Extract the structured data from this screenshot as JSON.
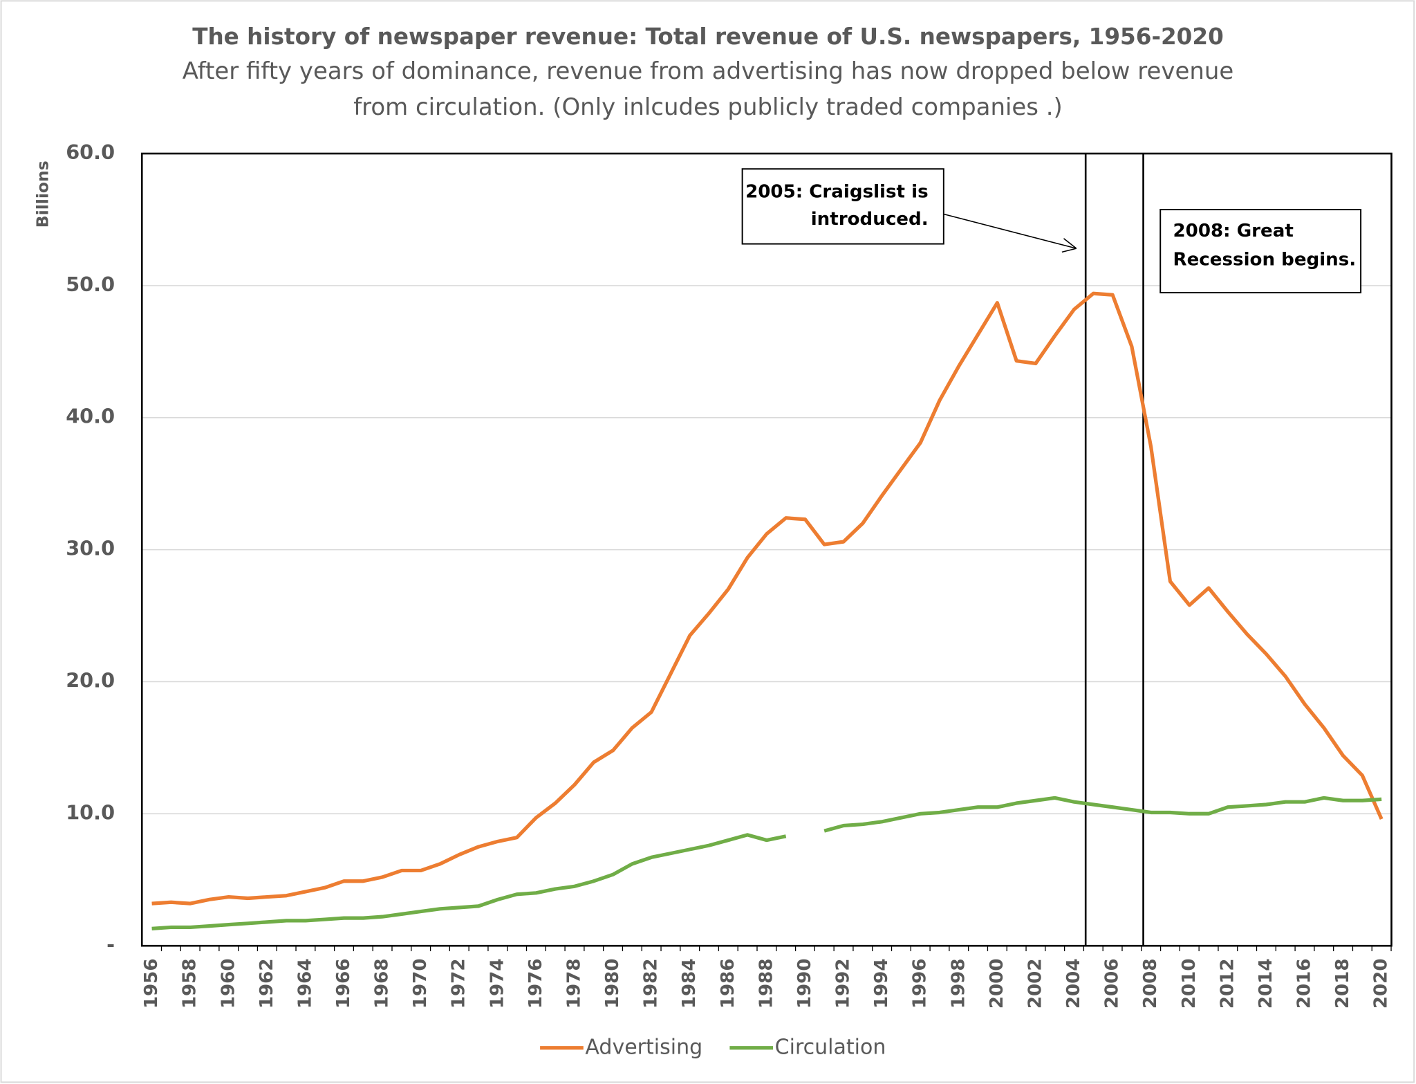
{
  "chart_data": {
    "type": "line",
    "title": "The history of newspaper revenue: Total revenue of U.S. newspapers, 1956-2020",
    "subtitle": [
      "After fifty years of dominance, revenue from advertising has now dropped below revenue",
      "from circulation. (Only inlcudes publicly traded companies .)"
    ],
    "y_label": "Billions",
    "categories": [
      "1956",
      null,
      "1958",
      null,
      "1960",
      null,
      "1962",
      null,
      "1964",
      null,
      "1966",
      null,
      "1968",
      null,
      "1970",
      null,
      "1972",
      null,
      "1974",
      null,
      "1976",
      null,
      "1978",
      null,
      "1980",
      null,
      "1982",
      null,
      "1984",
      null,
      "1986",
      null,
      "1988",
      null,
      "1990",
      null,
      "1992",
      null,
      "1994",
      null,
      "1996",
      null,
      "1998",
      null,
      "2000",
      null,
      "2002",
      null,
      "2004",
      null,
      "2006",
      null,
      "2008",
      null,
      "2010",
      null,
      "2012",
      null,
      "2014",
      null,
      "2016",
      null,
      "2018",
      null,
      "2020"
    ],
    "series": [
      {
        "name": "Advertising",
        "color": "#ed7d31",
        "values": [
          3.2,
          3.3,
          3.2,
          3.5,
          3.7,
          3.6,
          3.7,
          3.8,
          4.1,
          4.4,
          4.9,
          4.9,
          5.2,
          5.7,
          5.7,
          6.2,
          6.9,
          7.5,
          7.9,
          8.2,
          9.7,
          10.8,
          12.2,
          13.9,
          14.8,
          16.5,
          17.7,
          20.6,
          23.5,
          25.2,
          27.0,
          29.4,
          31.2,
          32.4,
          32.3,
          30.4,
          30.6,
          32.0,
          34.1,
          36.1,
          38.1,
          41.3,
          43.9,
          46.3,
          48.7,
          44.3,
          44.1,
          46.2,
          48.2,
          49.4,
          49.3,
          45.4,
          37.8,
          27.6,
          25.8,
          27.1,
          25.3,
          23.6,
          22.1,
          20.4,
          18.3,
          16.5,
          14.4,
          12.9,
          9.6
        ]
      },
      {
        "name": "Circulation",
        "color": "#70ad47",
        "values": [
          1.3,
          1.4,
          1.4,
          1.5,
          1.6,
          1.7,
          1.8,
          1.9,
          1.9,
          2.0,
          2.1,
          2.1,
          2.2,
          2.4,
          2.6,
          2.8,
          2.9,
          3.0,
          3.5,
          3.9,
          4.0,
          4.3,
          4.5,
          4.9,
          5.4,
          6.2,
          6.7,
          7.0,
          7.3,
          7.6,
          8.0,
          8.4,
          8.0,
          8.3,
          null,
          8.7,
          9.1,
          9.2,
          9.4,
          9.7,
          10.0,
          10.1,
          10.3,
          10.5,
          10.5,
          10.8,
          11.0,
          11.2,
          10.9,
          10.7,
          10.5,
          10.3,
          10.1,
          10.1,
          10.0,
          10.0,
          10.5,
          10.6,
          10.7,
          10.9,
          10.9,
          11.2,
          11.0,
          11.0,
          11.1
        ]
      }
    ],
    "ylim": [
      0,
      60
    ],
    "yticks": [
      {
        "value": 0,
        "label": "-"
      },
      {
        "value": 10,
        "label": "10.0"
      },
      {
        "value": 20,
        "label": "20.0"
      },
      {
        "value": 30,
        "label": "30.0"
      },
      {
        "value": 40,
        "label": "40.0"
      },
      {
        "value": 50,
        "label": "50.0"
      },
      {
        "value": 60,
        "label": "60.0"
      }
    ],
    "grid": true,
    "legend": "bottom",
    "annotations": [
      {
        "lines": [
          "2005: Craigslist is",
          "introduced."
        ],
        "x": 2004.6
      },
      {
        "lines": [
          "2008: Great",
          "Recession begins."
        ],
        "x": 2007.6
      }
    ]
  }
}
